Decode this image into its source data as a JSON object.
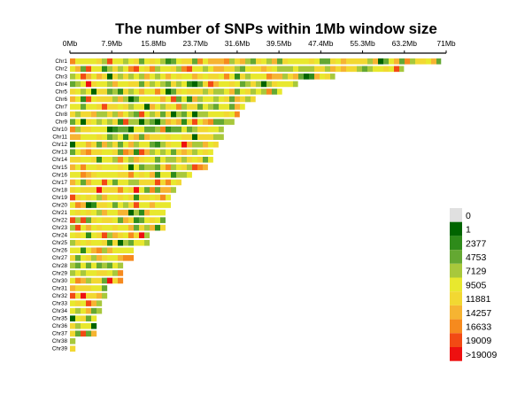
{
  "chart_data": {
    "type": "heatmap",
    "title": "The number of SNPs within 1Mb window size",
    "x_ticks": [
      "0Mb",
      "7.9Mb",
      "15.8Mb",
      "23.7Mb",
      "31.6Mb",
      "39.5Mb",
      "47.4Mb",
      "55.3Mb",
      "63.2Mb",
      "71Mb"
    ],
    "x_range_mb": [
      0,
      71
    ],
    "chromosomes": [
      {
        "name": "Chr1",
        "length_mb": 70
      },
      {
        "name": "Chr2",
        "length_mb": 63
      },
      {
        "name": "Chr3",
        "length_mb": 50
      },
      {
        "name": "Chr4",
        "length_mb": 43
      },
      {
        "name": "Chr5",
        "length_mb": 40
      },
      {
        "name": "Chr6",
        "length_mb": 35
      },
      {
        "name": "Chr7",
        "length_mb": 33
      },
      {
        "name": "Chr8",
        "length_mb": 32
      },
      {
        "name": "Chr9",
        "length_mb": 31
      },
      {
        "name": "Chr10",
        "length_mb": 29
      },
      {
        "name": "Chr11",
        "length_mb": 29
      },
      {
        "name": "Chr12",
        "length_mb": 28
      },
      {
        "name": "Chr13",
        "length_mb": 27
      },
      {
        "name": "Chr14",
        "length_mb": 27
      },
      {
        "name": "Chr15",
        "length_mb": 26
      },
      {
        "name": "Chr16",
        "length_mb": 23
      },
      {
        "name": "Chr17",
        "length_mb": 21
      },
      {
        "name": "Chr18",
        "length_mb": 20
      },
      {
        "name": "Chr19",
        "length_mb": 19
      },
      {
        "name": "Chr20",
        "length_mb": 19
      },
      {
        "name": "Chr21",
        "length_mb": 18
      },
      {
        "name": "Chr22",
        "length_mb": 18
      },
      {
        "name": "Chr23",
        "length_mb": 18
      },
      {
        "name": "Chr24",
        "length_mb": 15
      },
      {
        "name": "Chr25",
        "length_mb": 15
      },
      {
        "name": "Chr26",
        "length_mb": 12
      },
      {
        "name": "Chr27",
        "length_mb": 12
      },
      {
        "name": "Chr28",
        "length_mb": 10
      },
      {
        "name": "Chr29",
        "length_mb": 10
      },
      {
        "name": "Chr30",
        "length_mb": 10
      },
      {
        "name": "Chr31",
        "length_mb": 7
      },
      {
        "name": "Chr32",
        "length_mb": 7
      },
      {
        "name": "Chr33",
        "length_mb": 6
      },
      {
        "name": "Chr34",
        "length_mb": 6
      },
      {
        "name": "Chr35",
        "length_mb": 5
      },
      {
        "name": "Chr36",
        "length_mb": 5
      },
      {
        "name": "Chr37",
        "length_mb": 5
      },
      {
        "name": "Chr38",
        "length_mb": 1
      },
      {
        "name": "Chr39",
        "length_mb": 1
      }
    ],
    "legend": [
      {
        "label": "0",
        "color": "#e0e0e0"
      },
      {
        "label": "1",
        "color": "#006400"
      },
      {
        "label": "2377",
        "color": "#2e8b1a"
      },
      {
        "label": "4753",
        "color": "#64a832"
      },
      {
        "label": "7129",
        "color": "#a8c83c"
      },
      {
        "label": "9505",
        "color": "#e8e82e"
      },
      {
        "label": "11881",
        "color": "#f2d832"
      },
      {
        "label": "14257",
        "color": "#f6b432"
      },
      {
        "label": "16633",
        "color": "#f68a1e"
      },
      {
        "label": "19009",
        "color": "#f24a14"
      },
      {
        "label": ">19009",
        "color": "#ee1010"
      }
    ]
  }
}
